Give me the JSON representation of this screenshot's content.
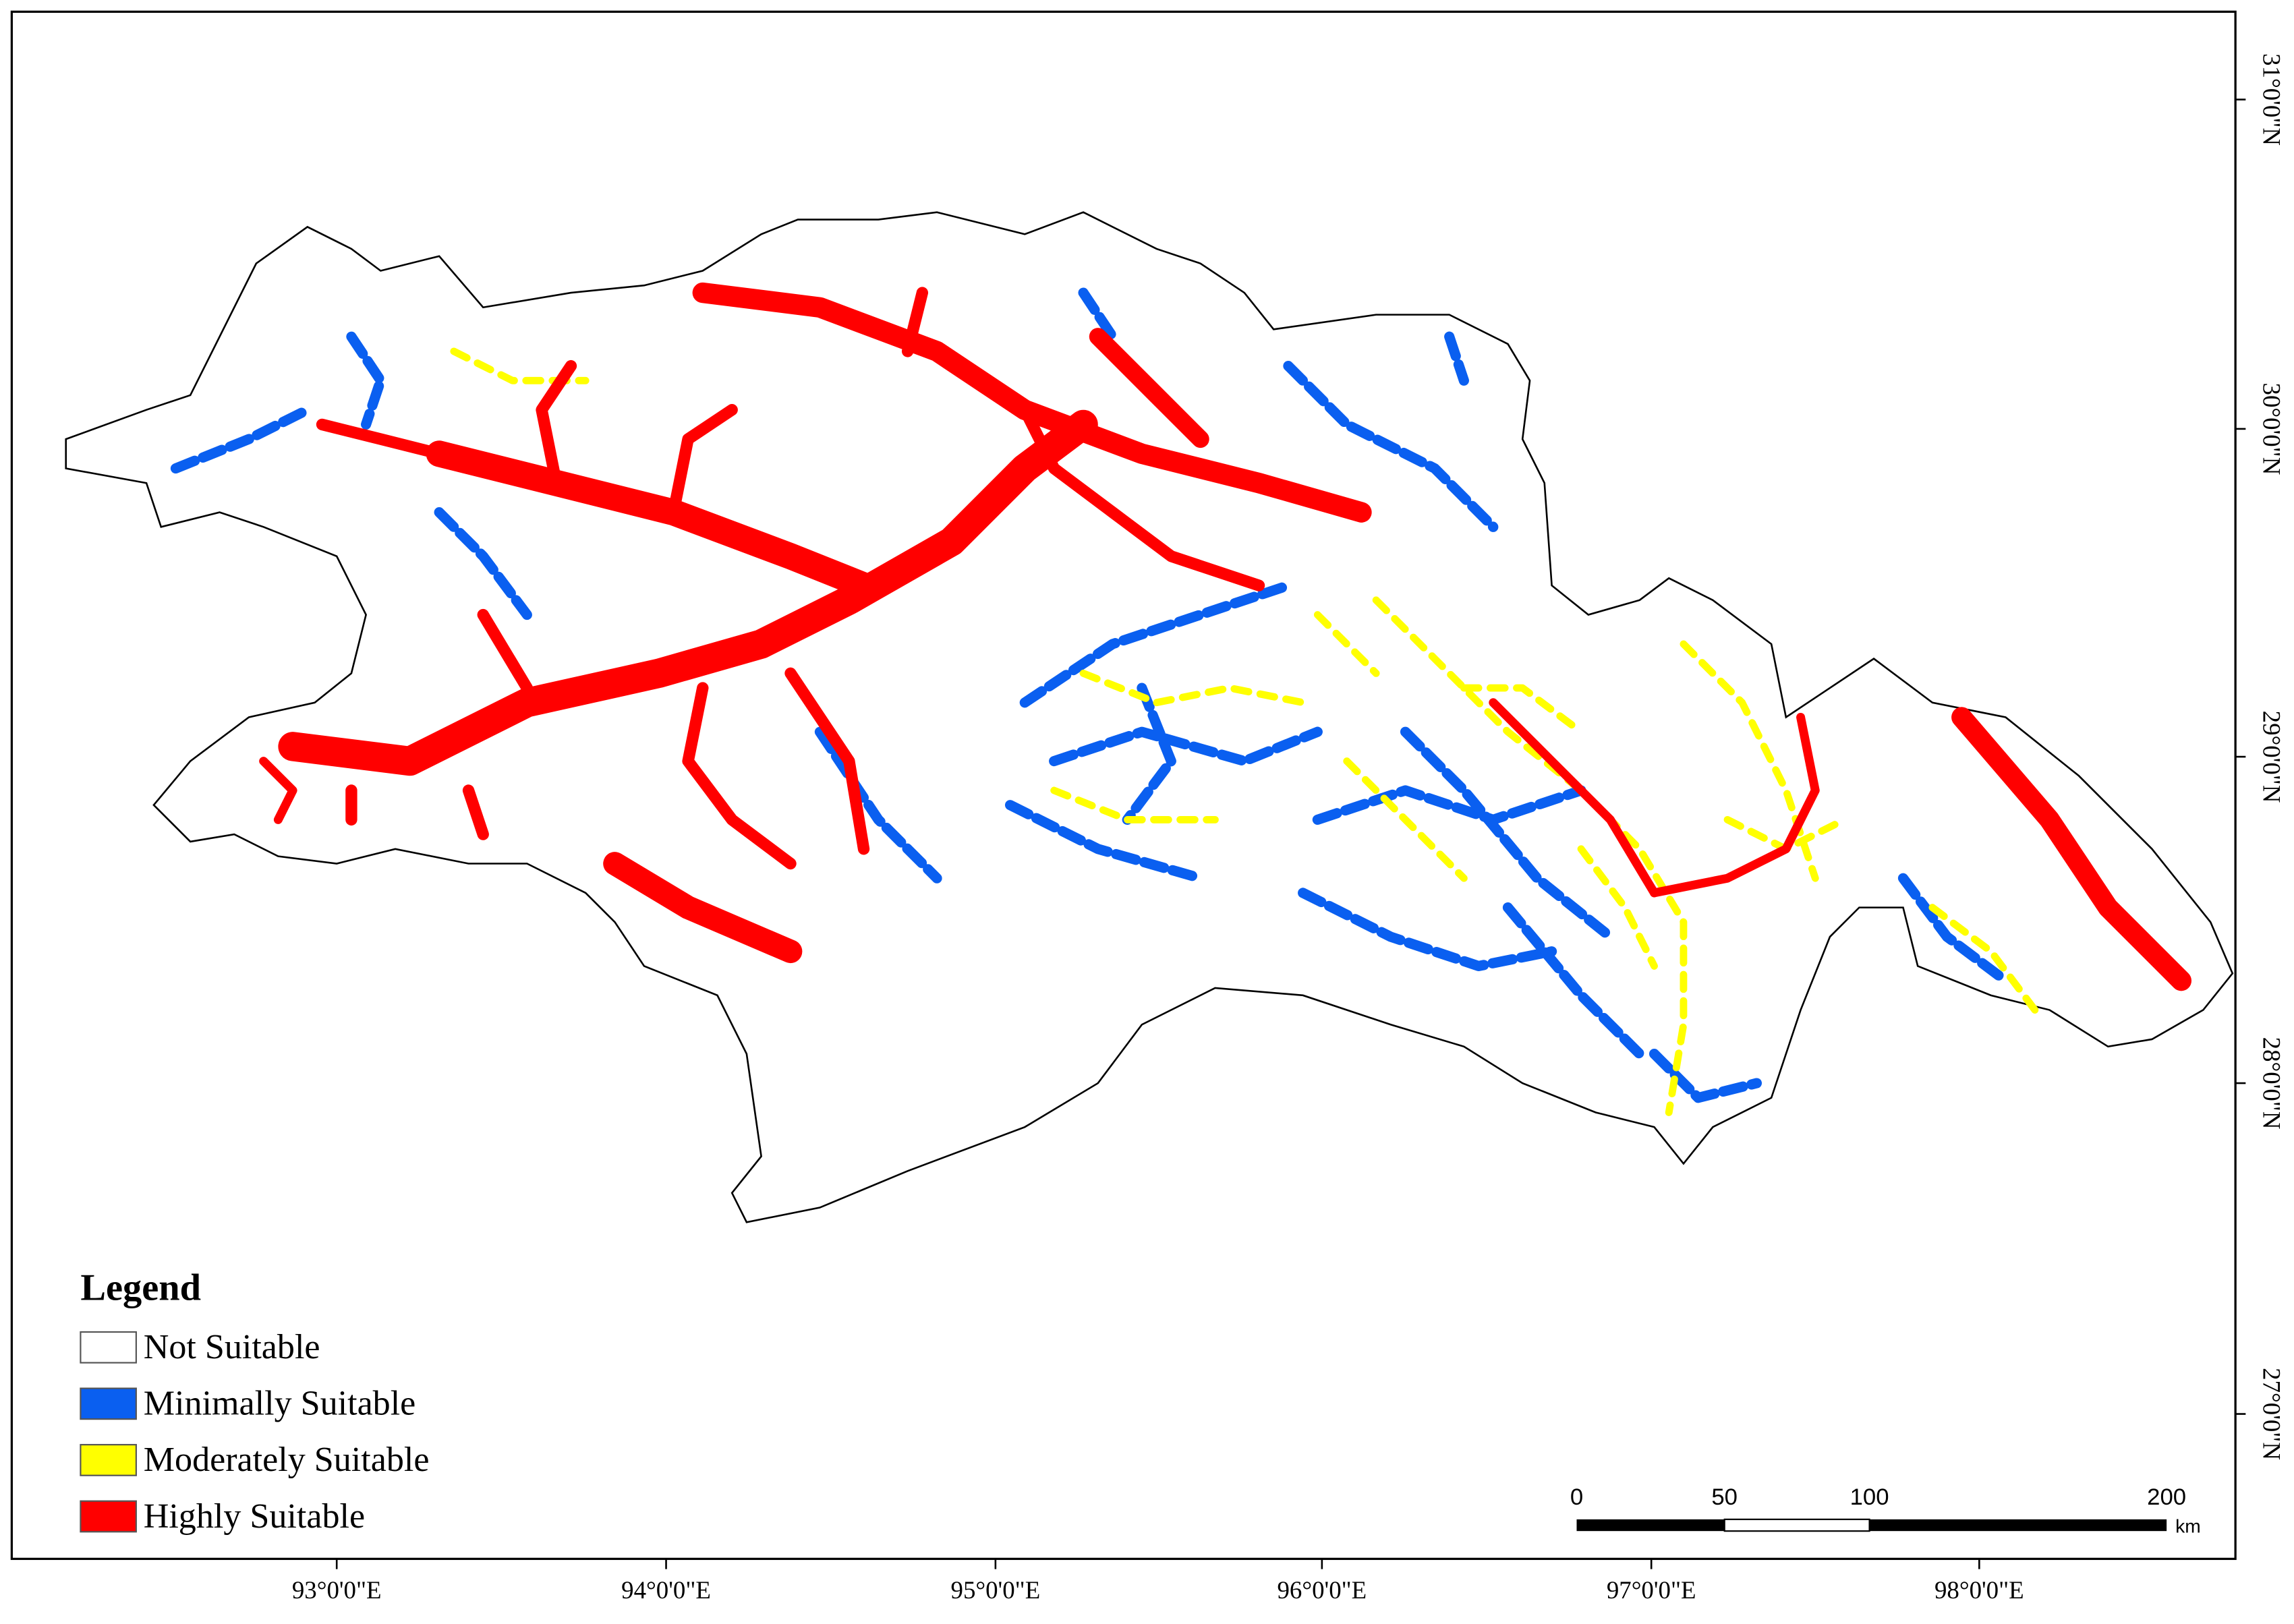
{
  "legend": {
    "title": "Legend",
    "items": [
      {
        "label": "Not Suitable",
        "color": "#ffffff"
      },
      {
        "label": "Minimally Suitable",
        "color": "#0a5ff0"
      },
      {
        "label": "Moderately Suitable",
        "color": "#ffff00"
      },
      {
        "label": "Highly Suitable",
        "color": "#ff0000"
      }
    ]
  },
  "axes": {
    "longitude": [
      "93°0'0\"E",
      "94°0'0\"E",
      "95°0'0\"E",
      "96°0'0\"E",
      "97°0'0\"E",
      "98°0'0\"E"
    ],
    "latitude": [
      "31°0'0\"N",
      "30°0'0\"N",
      "29°0'0\"N",
      "28°0'0\"N",
      "27°0'0\"N"
    ]
  },
  "scale_bar": {
    "labels": [
      "0",
      "50",
      "100",
      "200"
    ],
    "unit": "km"
  }
}
